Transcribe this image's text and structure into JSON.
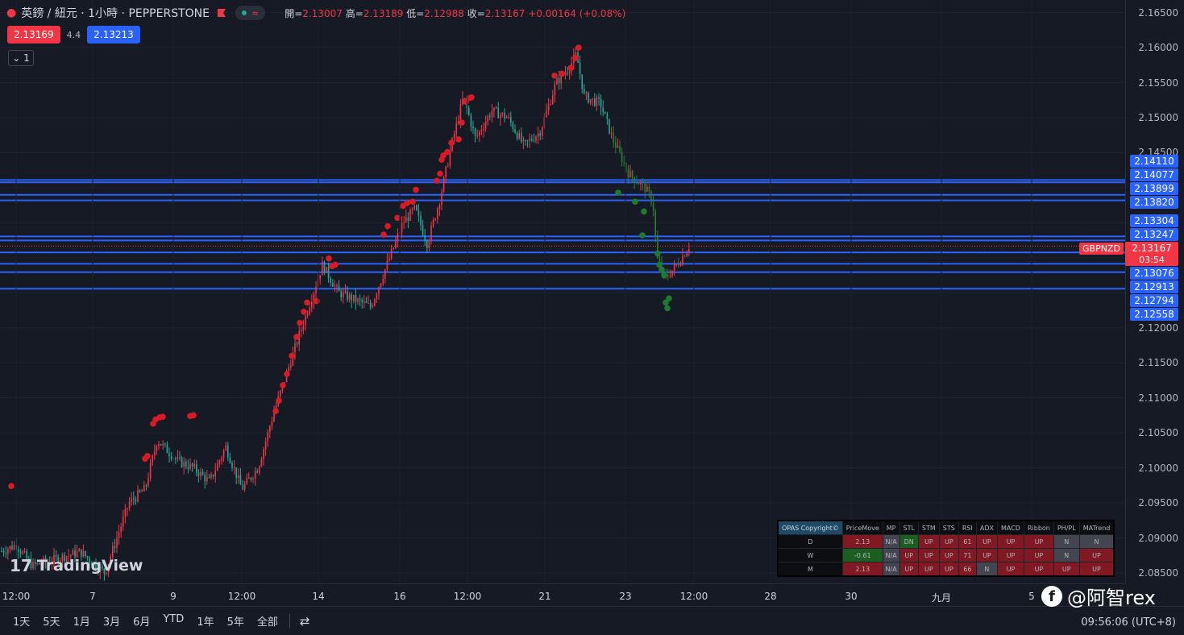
{
  "header": {
    "title": "英鎊 / 紐元 · 1小時 · PEPPERSTONE",
    "pill_icon": "≈",
    "ohlc": [
      {
        "label": "開=",
        "value": "2.13007"
      },
      {
        "label": "高=",
        "value": "2.13189"
      },
      {
        "label": "低=",
        "value": "2.12988"
      },
      {
        "label": "收=",
        "value": "2.13167"
      }
    ],
    "change": "+0.00164 (+0.08%)"
  },
  "quote": {
    "bid": "2.13169",
    "spread": "4.4",
    "ask": "2.13213"
  },
  "collapse_label": "1",
  "colors": {
    "up": "#f23645",
    "down": "#22ab94",
    "level": "#2962ff",
    "bg": "#161a25",
    "dot_red": "#d81b27",
    "dot_green": "#1e7a2e"
  },
  "price_axis": {
    "ticks": [
      "2.16500",
      "2.16000",
      "2.15500",
      "2.15000",
      "2.14500",
      "2.12000",
      "2.11500",
      "2.11000",
      "2.10500",
      "2.10000",
      "2.09500",
      "2.09000",
      "2.08500"
    ],
    "levels": [
      "2.14110",
      "2.14077",
      "2.13899",
      "2.13820",
      "2.13304",
      "2.13247",
      "2.13076",
      "2.12913",
      "2.12794",
      "2.12558"
    ],
    "current_price": "2.13167",
    "countdown": "03:54",
    "symbol": "GBPNZD"
  },
  "time_axis": [
    "12:00",
    "7",
    "9",
    "12:00",
    "14",
    "16",
    "12:00",
    "21",
    "23",
    "12:00",
    "28",
    "30",
    "九月",
    "5"
  ],
  "logo": "TradingView",
  "ranges": [
    "1天",
    "5天",
    "1月",
    "3月",
    "6月",
    "YTD",
    "1年",
    "5年",
    "全部"
  ],
  "clock": "09:56:06 (UTC+8)",
  "watermark": "@阿智rex",
  "opas": {
    "brand": "OPAS Copyright©",
    "columns": [
      "PriceMove",
      "MP",
      "STL",
      "STM",
      "STS",
      "RSI",
      "ADX",
      "MACD",
      "Ribbon",
      "PH/PL",
      "MATrend"
    ],
    "rows": [
      {
        "tf": "D",
        "cells": [
          {
            "v": "2.13",
            "c": "u"
          },
          {
            "v": "N/A",
            "c": "n"
          },
          {
            "v": "DN",
            "c": "g"
          },
          {
            "v": "UP",
            "c": "u"
          },
          {
            "v": "UP",
            "c": "u"
          },
          {
            "v": "61",
            "c": "u"
          },
          {
            "v": "UP",
            "c": "u"
          },
          {
            "v": "UP",
            "c": "u"
          },
          {
            "v": "UP",
            "c": "u"
          },
          {
            "v": "N",
            "c": "n"
          },
          {
            "v": "N",
            "c": "n"
          }
        ]
      },
      {
        "tf": "W",
        "cells": [
          {
            "v": "-0.61",
            "c": "g"
          },
          {
            "v": "N/A",
            "c": "n"
          },
          {
            "v": "UP",
            "c": "u"
          },
          {
            "v": "UP",
            "c": "u"
          },
          {
            "v": "UP",
            "c": "u"
          },
          {
            "v": "71",
            "c": "u"
          },
          {
            "v": "UP",
            "c": "u"
          },
          {
            "v": "UP",
            "c": "u"
          },
          {
            "v": "UP",
            "c": "u"
          },
          {
            "v": "N",
            "c": "n"
          },
          {
            "v": "UP",
            "c": "u"
          }
        ]
      },
      {
        "tf": "M",
        "cells": [
          {
            "v": "2.13",
            "c": "u"
          },
          {
            "v": "N/A",
            "c": "n"
          },
          {
            "v": "UP",
            "c": "u"
          },
          {
            "v": "UP",
            "c": "u"
          },
          {
            "v": "UP",
            "c": "u"
          },
          {
            "v": "66",
            "c": "u"
          },
          {
            "v": "N",
            "c": "n"
          },
          {
            "v": "UP",
            "c": "u"
          },
          {
            "v": "UP",
            "c": "u"
          },
          {
            "v": "UP",
            "c": "u"
          },
          {
            "v": "UP",
            "c": "u"
          }
        ]
      }
    ]
  },
  "chart_data": {
    "type": "candlestick",
    "ylim": [
      2.0835,
      2.1668
    ],
    "path": [
      [
        0,
        2.088
      ],
      [
        20,
        2.089
      ],
      [
        40,
        2.086
      ],
      [
        70,
        2.087
      ],
      [
        100,
        2.088
      ],
      [
        130,
        2.085
      ],
      [
        160,
        2.095
      ],
      [
        180,
        2.097
      ],
      [
        195,
        2.104
      ],
      [
        220,
        2.101
      ],
      [
        240,
        2.1
      ],
      [
        260,
        2.098
      ],
      [
        280,
        2.103
      ],
      [
        300,
        2.097
      ],
      [
        320,
        2.1
      ],
      [
        340,
        2.108
      ],
      [
        360,
        2.115
      ],
      [
        380,
        2.122
      ],
      [
        400,
        2.129
      ],
      [
        420,
        2.125
      ],
      [
        440,
        2.124
      ],
      [
        460,
        2.123
      ],
      [
        480,
        2.129
      ],
      [
        500,
        2.135
      ],
      [
        515,
        2.137
      ],
      [
        530,
        2.132
      ],
      [
        545,
        2.138
      ],
      [
        560,
        2.146
      ],
      [
        575,
        2.153
      ],
      [
        590,
        2.147
      ],
      [
        610,
        2.151
      ],
      [
        630,
        2.15
      ],
      [
        650,
        2.146
      ],
      [
        670,
        2.148
      ],
      [
        690,
        2.155
      ],
      [
        705,
        2.157
      ],
      [
        715,
        2.159
      ],
      [
        725,
        2.153
      ],
      [
        745,
        2.152
      ],
      [
        760,
        2.147
      ],
      [
        780,
        2.142
      ],
      [
        800,
        2.14
      ],
      [
        810,
        2.138
      ],
      [
        815,
        2.13
      ],
      [
        825,
        2.127
      ],
      [
        840,
        2.129
      ],
      [
        855,
        2.1317
      ]
    ],
    "dots_red": [
      [
        14,
        2.0974
      ],
      [
        180,
        2.1013
      ],
      [
        183,
        2.1017
      ],
      [
        190,
        2.1063
      ],
      [
        193,
        2.1069
      ],
      [
        198,
        2.1072
      ],
      [
        202,
        2.1073
      ],
      [
        236,
        2.1074
      ],
      [
        240,
        2.1075
      ],
      [
        342,
        2.1081
      ],
      [
        346,
        2.1096
      ],
      [
        351,
        2.1118
      ],
      [
        356,
        2.1134
      ],
      [
        362,
        2.116
      ],
      [
        368,
        2.1187
      ],
      [
        372,
        2.1207
      ],
      [
        377,
        2.1223
      ],
      [
        381,
        2.1236
      ],
      [
        393,
        2.1238
      ],
      [
        408,
        2.1299
      ],
      [
        412,
        2.1288
      ],
      [
        416,
        2.129
      ],
      [
        476,
        2.1333
      ],
      [
        481,
        2.1345
      ],
      [
        493,
        2.1357
      ],
      [
        500,
        2.1374
      ],
      [
        505,
        2.1378
      ],
      [
        512,
        2.138
      ],
      [
        516,
        2.1397
      ],
      [
        542,
        2.141
      ],
      [
        546,
        2.142
      ],
      [
        548,
        2.144
      ],
      [
        550,
        2.1446
      ],
      [
        555,
        2.1451
      ],
      [
        560,
        2.1464
      ],
      [
        569,
        2.1469
      ],
      [
        573,
        2.1493
      ],
      [
        578,
        2.1523
      ],
      [
        582,
        2.1528
      ],
      [
        585,
        2.1529
      ],
      [
        688,
        2.156
      ],
      [
        697,
        2.1563
      ],
      [
        708,
        2.1571
      ],
      [
        714,
        2.1585
      ],
      [
        718,
        2.16
      ]
    ],
    "dots_green": [
      [
        767,
        2.1393
      ],
      [
        788,
        2.138
      ],
      [
        799,
        2.1366
      ],
      [
        797,
        2.1332
      ],
      [
        816,
        2.1306
      ],
      [
        818,
        2.129
      ],
      [
        821,
        2.1283
      ],
      [
        824,
        2.1275
      ],
      [
        830,
        2.1242
      ],
      [
        826,
        2.1236
      ],
      [
        828,
        2.1228
      ]
    ]
  }
}
